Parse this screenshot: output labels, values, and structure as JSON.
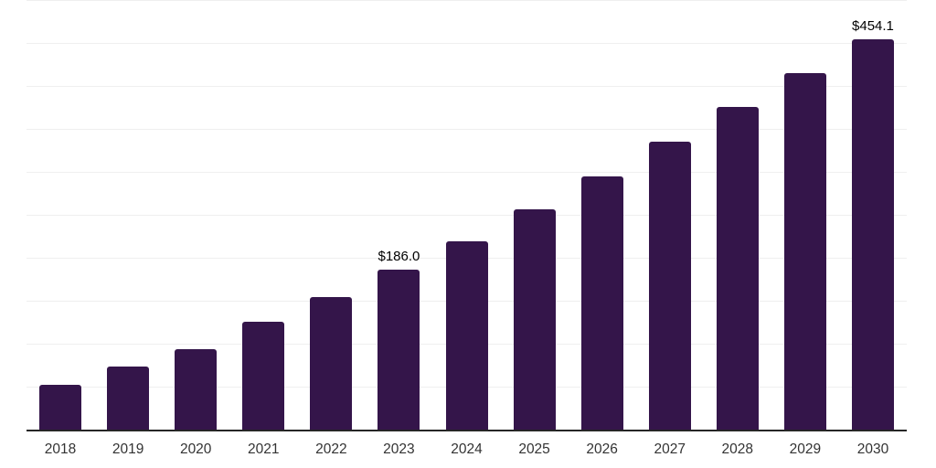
{
  "chart": {
    "background_color": "#ffffff",
    "bar_color": "#34154a",
    "axis_line_color": "#262626",
    "gridline_color": "#efefef",
    "data_label_color": "#000000",
    "tick_label_color": "#333333"
  },
  "chart_data": {
    "type": "bar",
    "title": "",
    "xlabel": "",
    "ylabel": "",
    "categories": [
      "2018",
      "2019",
      "2020",
      "2021",
      "2022",
      "2023",
      "2024",
      "2025",
      "2026",
      "2027",
      "2028",
      "2029",
      "2030"
    ],
    "values": [
      52.6,
      73.0,
      94.0,
      125.6,
      154.2,
      186.0,
      219.3,
      256.6,
      294.9,
      335.0,
      375.8,
      414.8,
      454.1
    ],
    "data_labels": {
      "2023": "$186.0",
      "2030": "$454.1"
    },
    "value_prefix": "$",
    "ylim": [
      0,
      500
    ],
    "gridline_step": 50,
    "grid": "horizontal",
    "legend_position": "none",
    "y_axis_ticks_visible": false
  }
}
